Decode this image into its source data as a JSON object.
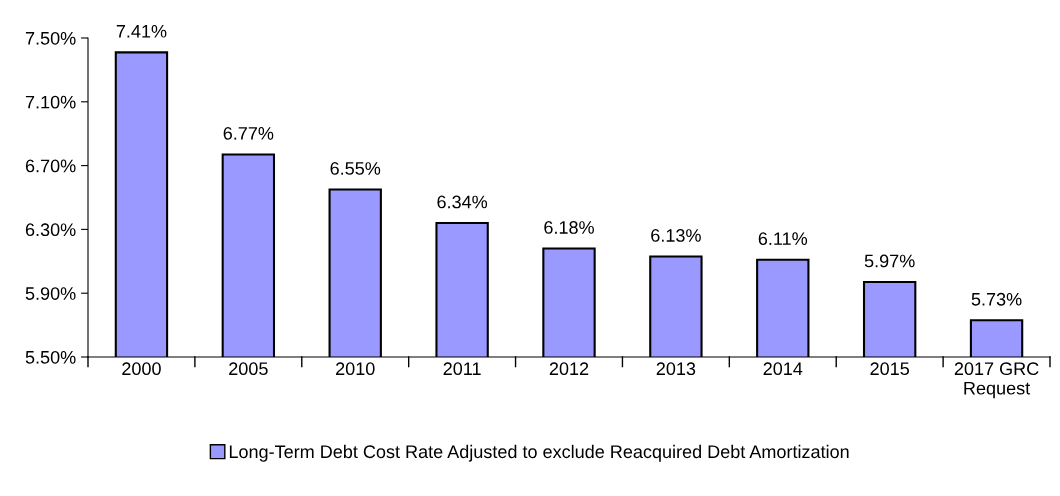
{
  "chart_data": {
    "type": "bar",
    "categories": [
      "2000",
      "2005",
      "2010",
      "2011",
      "2012",
      "2013",
      "2014",
      "2015",
      "2017 GRC\nRequest"
    ],
    "series": [
      {
        "name": "Long-Term Debt Cost Rate Adjusted to exclude Reacquired Debt Amortization",
        "color": "#9999ff",
        "values": [
          7.41,
          6.77,
          6.55,
          6.34,
          6.18,
          6.13,
          6.11,
          5.97,
          5.73
        ],
        "value_labels": [
          "7.41%",
          "6.77%",
          "6.55%",
          "6.34%",
          "6.18%",
          "6.13%",
          "6.11%",
          "5.97%",
          "5.73%"
        ]
      }
    ],
    "ylim": [
      5.5,
      7.5
    ],
    "yticks": [
      {
        "value": 5.5,
        "label": "5.50%"
      },
      {
        "value": 5.9,
        "label": "5.90%"
      },
      {
        "value": 6.3,
        "label": "6.30%"
      },
      {
        "value": 6.7,
        "label": "6.70%"
      },
      {
        "value": 7.1,
        "label": "7.10%"
      },
      {
        "value": 7.5,
        "label": "7.50%"
      }
    ],
    "grid": false,
    "legend": "bottom"
  }
}
